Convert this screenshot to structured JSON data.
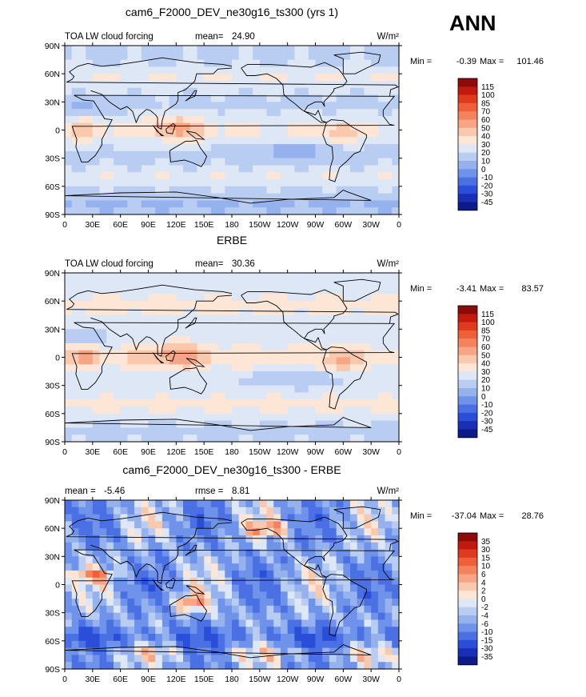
{
  "figure": {
    "season": "ANN",
    "panels": [
      {
        "title": "cam6_F2000_DEV_ne30g16_ts300 (yrs 1)",
        "left_label": "TOA LW cloud forcing",
        "stat1_label": "mean=",
        "stat1_value": "24.90",
        "stat2_label": "",
        "stat2_value": "",
        "units": "W/m²",
        "min_label": "Min =",
        "min_value": "-0.39",
        "max_label": "Max =",
        "max_value": "101.46"
      },
      {
        "title": "ERBE",
        "left_label": "TOA LW cloud forcing",
        "stat1_label": "mean=",
        "stat1_value": "30.36",
        "stat2_label": "",
        "stat2_value": "",
        "units": "W/m²",
        "min_label": "Min =",
        "min_value": "-3.41",
        "max_label": "Max =",
        "max_value": "83.57"
      },
      {
        "title": "cam6_F2000_DEV_ne30g16_ts300 - ERBE",
        "left_label": "mean =",
        "stat1_label": "",
        "stat1_value": "-5.46",
        "stat2_label": "rmse =",
        "stat2_value": "8.81",
        "units": "W/m²",
        "min_label": "Min =",
        "min_value": "-37.04",
        "max_label": "Max =",
        "max_value": "28.76"
      }
    ]
  },
  "chart_data": [
    {
      "type": "heatmap",
      "title": "cam6_F2000_DEV_ne30g16_ts300 (yrs 1)",
      "variable": "TOA LW cloud forcing",
      "units": "W/m²",
      "mean": 24.9,
      "min": -0.39,
      "max": 101.46,
      "x_ticks": [
        "0",
        "30E",
        "60E",
        "90E",
        "120E",
        "150E",
        "180",
        "150W",
        "120W",
        "90W",
        "60W",
        "30W",
        "0"
      ],
      "y_ticks": [
        "90N",
        "60N",
        "30N",
        "0",
        "30S",
        "60S",
        "90S"
      ],
      "colorbar_levels": [
        "115",
        "100",
        "85",
        "70",
        "60",
        "50",
        "40",
        "30",
        "20",
        "10",
        "0",
        "-10",
        "-20",
        "-30",
        "-45"
      ],
      "colorbar_colors": [
        "#8c0a0a",
        "#c21a0e",
        "#e03a1e",
        "#ee5f3a",
        "#f4835d",
        "#f7a585",
        "#fac8ad",
        "#fde6d6",
        "#dde7f6",
        "#b9cdf2",
        "#95b2ee",
        "#6f92ea",
        "#4a70e3",
        "#2a4ed8",
        "#1a2fb8",
        "#0c1a8a"
      ]
    },
    {
      "type": "heatmap",
      "title": "ERBE",
      "variable": "TOA LW cloud forcing",
      "units": "W/m²",
      "mean": 30.36,
      "min": -3.41,
      "max": 83.57,
      "x_ticks": [
        "0",
        "30E",
        "60E",
        "90E",
        "120E",
        "150E",
        "180",
        "150W",
        "120W",
        "90W",
        "60W",
        "30W",
        "0"
      ],
      "y_ticks": [
        "90N",
        "60N",
        "30N",
        "0",
        "30S",
        "60S",
        "90S"
      ],
      "colorbar_levels": [
        "115",
        "100",
        "85",
        "70",
        "60",
        "50",
        "40",
        "30",
        "20",
        "10",
        "0",
        "-10",
        "-20",
        "-30",
        "-45"
      ],
      "colorbar_colors": [
        "#8c0a0a",
        "#c21a0e",
        "#e03a1e",
        "#ee5f3a",
        "#f4835d",
        "#f7a585",
        "#fac8ad",
        "#fde6d6",
        "#dde7f6",
        "#b9cdf2",
        "#95b2ee",
        "#6f92ea",
        "#4a70e3",
        "#2a4ed8",
        "#1a2fb8",
        "#0c1a8a"
      ]
    },
    {
      "type": "heatmap",
      "title": "cam6_F2000_DEV_ne30g16_ts300 - ERBE",
      "variable": "difference",
      "units": "W/m²",
      "mean": -5.46,
      "rmse": 8.81,
      "min": -37.04,
      "max": 28.76,
      "x_ticks": [
        "0",
        "30E",
        "60E",
        "90E",
        "120E",
        "150E",
        "180",
        "150W",
        "120W",
        "90W",
        "60W",
        "30W",
        "0"
      ],
      "y_ticks": [
        "90N",
        "60N",
        "30N",
        "0",
        "30S",
        "60S",
        "90S"
      ],
      "colorbar_levels": [
        "35",
        "30",
        "15",
        "10",
        "6",
        "4",
        "2",
        "0",
        "-2",
        "-4",
        "-6",
        "-10",
        "-15",
        "-30",
        "-35"
      ],
      "colorbar_colors": [
        "#8c0a0a",
        "#c21a0e",
        "#e03a1e",
        "#ee5f3a",
        "#f4835d",
        "#f7a585",
        "#fac8ad",
        "#fde6d6",
        "#dde7f6",
        "#b9cdf2",
        "#95b2ee",
        "#6f92ea",
        "#4a70e3",
        "#2a4ed8",
        "#1a2fb8",
        "#0c1a8a"
      ]
    }
  ]
}
